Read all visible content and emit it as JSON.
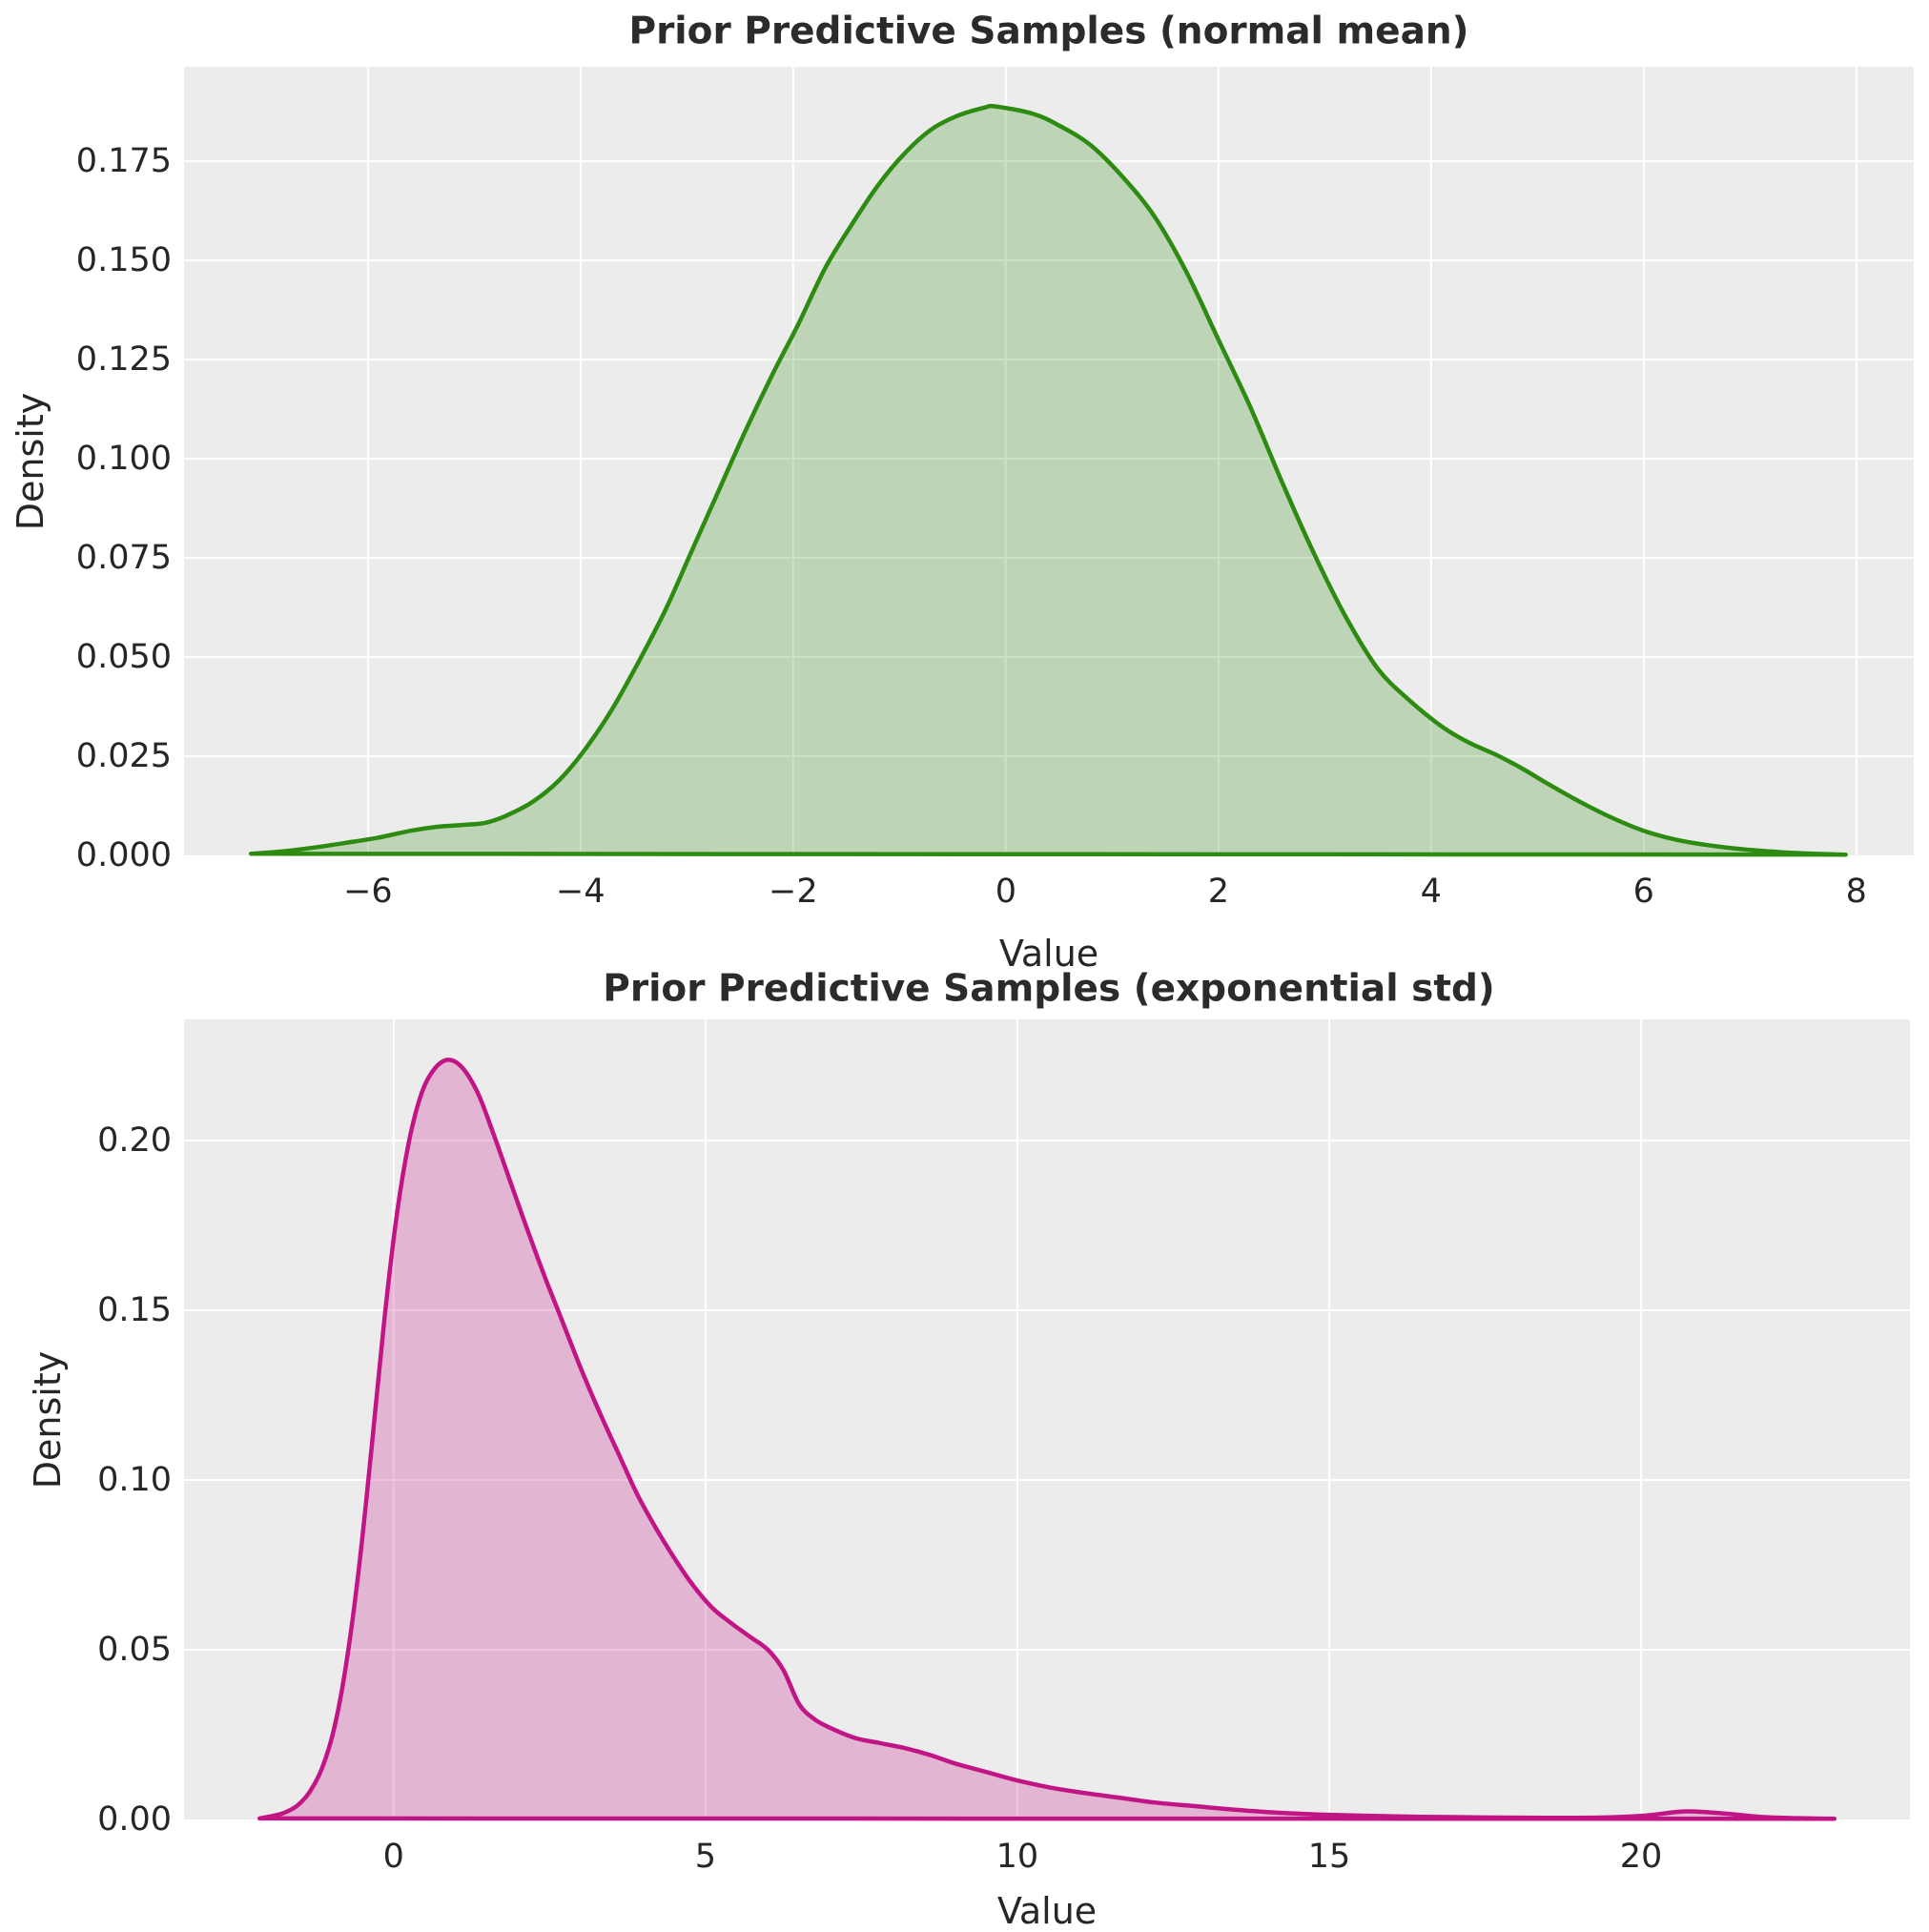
{
  "figure": {
    "background_color": "#ffffff",
    "axes_background_color": "#ececec",
    "grid_color": "#ffffff",
    "text_color": "#262626",
    "title_color": "#2b2b2b"
  },
  "chart_data": [
    {
      "type": "area",
      "title": "Prior Predictive Samples (normal mean)",
      "xlabel": "Value",
      "ylabel": "Density",
      "legend": false,
      "grid": true,
      "xlim": [
        -7.73,
        8.54
      ],
      "ylim": [
        0,
        0.1988
      ],
      "x_tick_values": [
        -6,
        -4,
        -2,
        0,
        2,
        4,
        6,
        8
      ],
      "x_tick_labels": [
        "−6",
        "−4",
        "−2",
        "0",
        "2",
        "4",
        "6",
        "8"
      ],
      "y_tick_values": [
        0.0,
        0.025,
        0.05,
        0.075,
        0.1,
        0.125,
        0.15,
        0.175
      ],
      "y_tick_labels": [
        "0.000",
        "0.025",
        "0.050",
        "0.075",
        "0.100",
        "0.125",
        "0.150",
        "0.175"
      ],
      "series": [
        {
          "name": "kde-normal-mean",
          "line_color": "#2e8b12",
          "fill_color": "rgba(46,139,18,0.25)",
          "peak": {
            "x": -0.1,
            "density": 0.1888
          },
          "points": [
            [
              -7.1,
              0.0004
            ],
            [
              -6.8,
              0.001
            ],
            [
              -6.5,
              0.002
            ],
            [
              -6.2,
              0.0032
            ],
            [
              -5.9,
              0.0045
            ],
            [
              -5.6,
              0.0062
            ],
            [
              -5.35,
              0.0072
            ],
            [
              -5.1,
              0.0077
            ],
            [
              -4.9,
              0.0082
            ],
            [
              -4.7,
              0.01
            ],
            [
              -4.45,
              0.0135
            ],
            [
              -4.2,
              0.019
            ],
            [
              -3.95,
              0.027
            ],
            [
              -3.7,
              0.037
            ],
            [
              -3.45,
              0.049
            ],
            [
              -3.2,
              0.062
            ],
            [
              -2.95,
              0.077
            ],
            [
              -2.7,
              0.092
            ],
            [
              -2.45,
              0.107
            ],
            [
              -2.2,
              0.121
            ],
            [
              -1.95,
              0.134
            ],
            [
              -1.7,
              0.148
            ],
            [
              -1.45,
              0.159
            ],
            [
              -1.2,
              0.169
            ],
            [
              -0.95,
              0.177
            ],
            [
              -0.7,
              0.183
            ],
            [
              -0.45,
              0.1865
            ],
            [
              -0.2,
              0.1885
            ],
            [
              -0.1,
              0.1888
            ],
            [
              0.25,
              0.187
            ],
            [
              0.5,
              0.184
            ],
            [
              0.8,
              0.179
            ],
            [
              1.1,
              0.171
            ],
            [
              1.4,
              0.161
            ],
            [
              1.7,
              0.147
            ],
            [
              2.0,
              0.13
            ],
            [
              2.3,
              0.113
            ],
            [
              2.6,
              0.094
            ],
            [
              2.9,
              0.076
            ],
            [
              3.2,
              0.06
            ],
            [
              3.5,
              0.047
            ],
            [
              3.8,
              0.039
            ],
            [
              4.1,
              0.0325
            ],
            [
              4.35,
              0.0285
            ],
            [
              4.6,
              0.0255
            ],
            [
              4.85,
              0.022
            ],
            [
              5.1,
              0.018
            ],
            [
              5.4,
              0.0135
            ],
            [
              5.7,
              0.0095
            ],
            [
              6.0,
              0.0062
            ],
            [
              6.3,
              0.004
            ],
            [
              6.6,
              0.0026
            ],
            [
              6.95,
              0.0015
            ],
            [
              7.3,
              0.0008
            ],
            [
              7.6,
              0.0004
            ],
            [
              7.9,
              0.0002
            ]
          ]
        }
      ]
    },
    {
      "type": "area",
      "title": "Prior Predictive Samples (exponential std)",
      "xlabel": "Value",
      "ylabel": "Density",
      "legend": false,
      "grid": true,
      "xlim": [
        -3.36,
        24.31
      ],
      "ylim": [
        0,
        0.2357
      ],
      "x_tick_values": [
        0,
        5,
        10,
        15,
        20
      ],
      "x_tick_labels": [
        "0",
        "5",
        "10",
        "15",
        "20"
      ],
      "y_tick_values": [
        0.0,
        0.05,
        0.1,
        0.15,
        0.2
      ],
      "y_tick_labels": [
        "0.00",
        "0.05",
        "0.10",
        "0.15",
        "0.20"
      ],
      "series": [
        {
          "name": "kde-exponential-std",
          "line_color": "#c21585",
          "fill_color": "rgba(194,21,133,0.25)",
          "peak": {
            "x": 0.87,
            "density": 0.2238
          },
          "points": [
            [
              -2.15,
              0.0003
            ],
            [
              -1.95,
              0.001
            ],
            [
              -1.75,
              0.002
            ],
            [
              -1.55,
              0.004
            ],
            [
              -1.35,
              0.008
            ],
            [
              -1.15,
              0.015
            ],
            [
              -0.95,
              0.027
            ],
            [
              -0.75,
              0.047
            ],
            [
              -0.55,
              0.075
            ],
            [
              -0.35,
              0.11
            ],
            [
              -0.15,
              0.147
            ],
            [
              0.05,
              0.178
            ],
            [
              0.25,
              0.2
            ],
            [
              0.45,
              0.214
            ],
            [
              0.65,
              0.221
            ],
            [
              0.87,
              0.2238
            ],
            [
              1.1,
              0.2215
            ],
            [
              1.35,
              0.214
            ],
            [
              1.6,
              0.202
            ],
            [
              1.85,
              0.189
            ],
            [
              2.1,
              0.176
            ],
            [
              2.4,
              0.161
            ],
            [
              2.7,
              0.147
            ],
            [
              3.0,
              0.133
            ],
            [
              3.3,
              0.12
            ],
            [
              3.6,
              0.108
            ],
            [
              3.9,
              0.096
            ],
            [
              4.2,
              0.086
            ],
            [
              4.5,
              0.077
            ],
            [
              4.8,
              0.069
            ],
            [
              5.1,
              0.0625
            ],
            [
              5.4,
              0.058
            ],
            [
              5.7,
              0.054
            ],
            [
              6.0,
              0.05
            ],
            [
              6.25,
              0.044
            ],
            [
              6.5,
              0.034
            ],
            [
              6.75,
              0.0295
            ],
            [
              7.0,
              0.027
            ],
            [
              7.4,
              0.024
            ],
            [
              7.8,
              0.0225
            ],
            [
              8.2,
              0.021
            ],
            [
              8.6,
              0.019
            ],
            [
              9.0,
              0.0165
            ],
            [
              9.5,
              0.014
            ],
            [
              10.0,
              0.0115
            ],
            [
              10.5,
              0.0095
            ],
            [
              11.0,
              0.008
            ],
            [
              11.6,
              0.0065
            ],
            [
              12.2,
              0.005
            ],
            [
              12.8,
              0.004
            ],
            [
              13.4,
              0.003
            ],
            [
              14.0,
              0.0022
            ],
            [
              14.8,
              0.0015
            ],
            [
              15.6,
              0.0011
            ],
            [
              16.5,
              0.0008
            ],
            [
              17.5,
              0.0006
            ],
            [
              18.5,
              0.0005
            ],
            [
              19.4,
              0.0006
            ],
            [
              20.1,
              0.0012
            ],
            [
              20.7,
              0.0024
            ],
            [
              21.3,
              0.0018
            ],
            [
              21.9,
              0.0008
            ],
            [
              22.5,
              0.0004
            ],
            [
              23.1,
              0.0002
            ]
          ]
        }
      ]
    }
  ]
}
